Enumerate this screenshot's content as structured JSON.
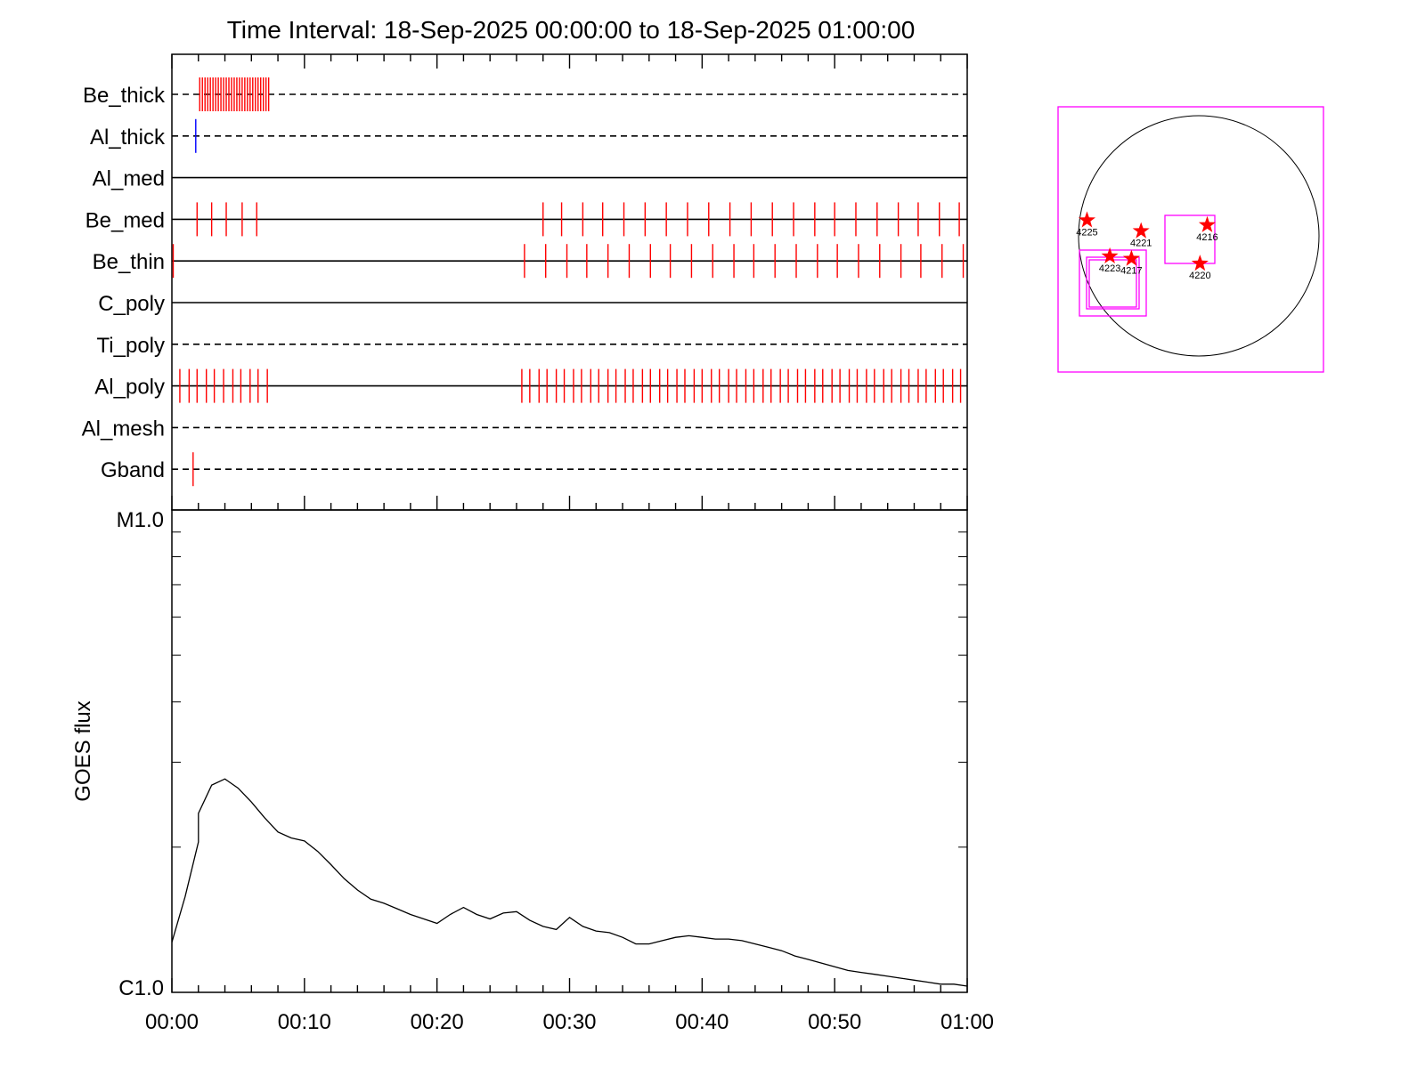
{
  "chart_data": [
    {
      "type": "timeline",
      "title": "Time Interval: 18-Sep-2025 00:00:00 to 18-Sep-2025 01:00:00",
      "x_range_minutes": [
        0,
        60
      ],
      "tick_labels": [
        "00:00",
        "00:10",
        "00:20",
        "00:30",
        "00:40",
        "00:50",
        "01:00"
      ],
      "channels": [
        {
          "name": "Be_thick",
          "line": "dashed",
          "color": "#ff0000",
          "events": [
            2.1,
            2.3,
            2.5,
            2.7,
            2.9,
            3.1,
            3.3,
            3.5,
            3.7,
            3.9,
            4.1,
            4.3,
            4.5,
            4.7,
            4.9,
            5.1,
            5.3,
            5.5,
            5.7,
            5.9,
            6.1,
            6.3,
            6.5,
            6.7,
            6.9,
            7.1,
            7.3
          ]
        },
        {
          "name": "Al_thick",
          "line": "dashed",
          "color": "#0000ff",
          "events": [
            1.8
          ]
        },
        {
          "name": "Al_med",
          "line": "solid",
          "color": "#ff0000",
          "events": []
        },
        {
          "name": "Be_med",
          "line": "solid",
          "color": "#ff0000",
          "events": [
            1.9,
            3.0,
            4.1,
            5.3,
            6.4,
            28.0,
            29.4,
            31.0,
            32.5,
            34.1,
            35.7,
            37.3,
            38.9,
            40.5,
            42.1,
            43.7,
            45.3,
            46.9,
            48.5,
            50.0,
            51.6,
            53.2,
            54.8,
            56.3,
            57.9,
            59.4
          ]
        },
        {
          "name": "Be_thin",
          "line": "solid",
          "color": "#ff0000",
          "events": [
            0.1,
            26.6,
            28.2,
            29.8,
            31.3,
            32.9,
            34.5,
            36.1,
            37.6,
            39.2,
            40.8,
            42.4,
            43.9,
            45.5,
            47.1,
            48.7,
            50.2,
            51.8,
            53.4,
            55.0,
            56.5,
            58.1,
            59.7
          ]
        },
        {
          "name": "C_poly",
          "line": "solid",
          "color": "#ff0000",
          "events": []
        },
        {
          "name": "Ti_poly",
          "line": "dashed",
          "color": "#ff0000",
          "events": []
        },
        {
          "name": "Al_poly",
          "line": "solid",
          "color": "#ff0000",
          "events": [
            0.6,
            1.3,
            1.9,
            2.6,
            3.2,
            3.9,
            4.6,
            5.2,
            5.9,
            6.5,
            7.2,
            26.4,
            27.0,
            27.7,
            28.3,
            29.0,
            29.6,
            30.3,
            30.9,
            31.6,
            32.2,
            32.9,
            33.5,
            34.2,
            34.8,
            35.5,
            36.1,
            36.8,
            37.4,
            38.1,
            38.7,
            39.4,
            40.0,
            40.7,
            41.3,
            42.0,
            42.6,
            43.3,
            43.9,
            44.6,
            45.2,
            45.9,
            46.5,
            47.2,
            47.8,
            48.5,
            49.1,
            49.8,
            50.4,
            51.1,
            51.7,
            52.4,
            53.0,
            53.7,
            54.3,
            55.0,
            55.6,
            56.3,
            56.9,
            57.6,
            58.2,
            58.9,
            59.5
          ]
        },
        {
          "name": "Al_mesh",
          "line": "dashed",
          "color": "#ff0000",
          "events": []
        },
        {
          "name": "Gband",
          "line": "dashed",
          "color": "#ff0000",
          "events": [
            1.6
          ]
        }
      ]
    },
    {
      "type": "line",
      "ylabel": "GOES flux",
      "y_scale": "log",
      "ylim": [
        1e-06,
        1e-05
      ],
      "y_tick_labels": [
        "C1.0",
        "M1.0"
      ],
      "x_tick_labels": [
        "00:00",
        "00:10",
        "00:20",
        "00:30",
        "00:40",
        "00:50",
        "01:00"
      ],
      "x_minutes": [
        0,
        1,
        2,
        2,
        3,
        4,
        5,
        6,
        7,
        8,
        9,
        10,
        11,
        12,
        13,
        14,
        15,
        16,
        17,
        18,
        19,
        20,
        21,
        22,
        23,
        24,
        25,
        26,
        27,
        28,
        29,
        30,
        31,
        32,
        33,
        34,
        35,
        36,
        37,
        38,
        39,
        40,
        41,
        42,
        43,
        44,
        45,
        46,
        47,
        48,
        49,
        50,
        51,
        52,
        53,
        54,
        55,
        56,
        57,
        58,
        59,
        60
      ],
      "y_flux": [
        1.27e-06,
        1.58e-06,
        2.05e-06,
        2.35e-06,
        2.69e-06,
        2.77e-06,
        2.65e-06,
        2.48e-06,
        2.3e-06,
        2.15e-06,
        2.09e-06,
        2.06e-06,
        1.96e-06,
        1.84e-06,
        1.72e-06,
        1.63e-06,
        1.56e-06,
        1.53e-06,
        1.49e-06,
        1.45e-06,
        1.42e-06,
        1.39e-06,
        1.45e-06,
        1.5e-06,
        1.45e-06,
        1.42e-06,
        1.46e-06,
        1.47e-06,
        1.41e-06,
        1.37e-06,
        1.35e-06,
        1.43e-06,
        1.37e-06,
        1.34e-06,
        1.33e-06,
        1.3e-06,
        1.26e-06,
        1.26e-06,
        1.28e-06,
        1.3e-06,
        1.31e-06,
        1.3e-06,
        1.29e-06,
        1.29e-06,
        1.28e-06,
        1.26e-06,
        1.24e-06,
        1.22e-06,
        1.19e-06,
        1.17e-06,
        1.15e-06,
        1.13e-06,
        1.11e-06,
        1.1e-06,
        1.09e-06,
        1.08e-06,
        1.07e-06,
        1.06e-06,
        1.05e-06,
        1.04e-06,
        1.04e-06,
        1.03e-06
      ],
      "color": "#000000"
    },
    {
      "type": "scatter",
      "subtype": "solar-disk-map",
      "boxes_color": "#ff00ff",
      "star_color": "#ff0000",
      "regions": [
        {
          "label": "4225",
          "x": -0.93,
          "y": 0.13
        },
        {
          "label": "4221",
          "x": -0.48,
          "y": 0.04
        },
        {
          "label": "4216",
          "x": 0.07,
          "y": 0.09
        },
        {
          "label": "4223",
          "x": -0.74,
          "y": -0.17
        },
        {
          "label": "4217",
          "x": -0.56,
          "y": -0.19
        },
        {
          "label": "4220",
          "x": 0.01,
          "y": -0.23
        }
      ]
    }
  ]
}
